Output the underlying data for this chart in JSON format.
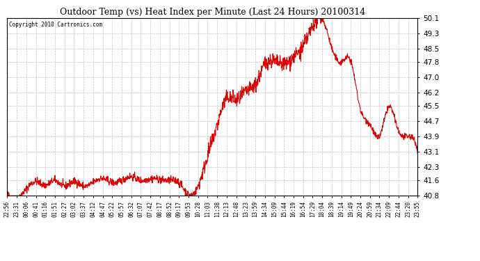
{
  "title": "Outdoor Temp (vs) Heat Index per Minute (Last 24 Hours) 20100314",
  "copyright": "Copyright 2010 Cartronics.com",
  "line_color": "#dd0000",
  "background_color": "#ffffff",
  "grid_color": "#bbbbbb",
  "ylim": [
    40.8,
    50.1
  ],
  "yticks": [
    40.8,
    41.6,
    42.3,
    43.1,
    43.9,
    44.7,
    45.5,
    46.2,
    47.0,
    47.8,
    48.5,
    49.3,
    50.1
  ],
  "xtick_labels": [
    "22:56",
    "23:31",
    "00:06",
    "00:41",
    "01:16",
    "01:51",
    "02:27",
    "03:02",
    "03:37",
    "04:12",
    "04:47",
    "05:22",
    "05:57",
    "06:32",
    "07:07",
    "07:42",
    "08:17",
    "08:52",
    "09:17",
    "09:53",
    "10:28",
    "11:03",
    "11:38",
    "12:13",
    "12:48",
    "13:23",
    "13:59",
    "14:34",
    "15:09",
    "15:44",
    "16:19",
    "16:54",
    "17:29",
    "18:04",
    "18:39",
    "19:14",
    "19:49",
    "20:24",
    "20:59",
    "21:34",
    "22:09",
    "22:44",
    "23:20",
    "23:55"
  ],
  "n_ticks": 44
}
